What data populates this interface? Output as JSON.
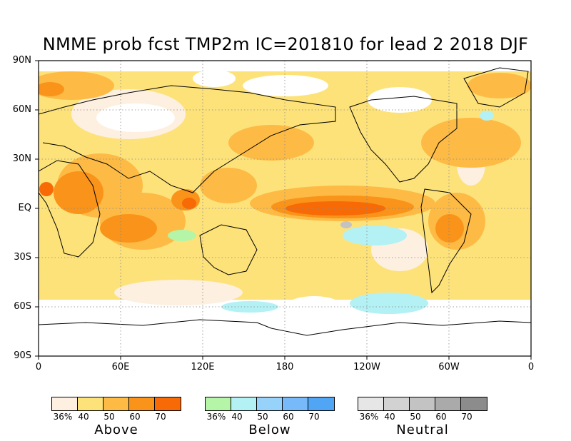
{
  "title": "NMME prob fcst TMP2m IC=201810 for lead 2 2018 DJF",
  "lat_labels": [
    "90N",
    "60N",
    "30N",
    "EQ",
    "30S",
    "60S",
    "90S"
  ],
  "lon_labels": [
    "0",
    "60E",
    "120E",
    "180",
    "120W",
    "60W",
    "0"
  ],
  "legends": [
    {
      "name": "Above",
      "ticks": [
        "36%",
        "40",
        "50",
        "60",
        "70"
      ],
      "colors": [
        "#fdf0e0",
        "#fde27a",
        "#fdbb45",
        "#fa9319",
        "#f76a06"
      ]
    },
    {
      "name": "Below",
      "ticks": [
        "36%",
        "40",
        "50",
        "60",
        "70"
      ],
      "colors": [
        "#b4f5a8",
        "#b3f1f5",
        "#96d2fa",
        "#78b9fa",
        "#50a5f5"
      ]
    },
    {
      "name": "Neutral",
      "ticks": [
        "36%",
        "40",
        "50",
        "60",
        "70"
      ],
      "colors": [
        "#e6e6e6",
        "#d2d2d2",
        "#c3c3c3",
        "#aaaaaa",
        "#8c8c8c"
      ]
    }
  ],
  "colors": {
    "land_outline": "#000000",
    "grid": "#888888",
    "antarctica": "#ffffff"
  }
}
